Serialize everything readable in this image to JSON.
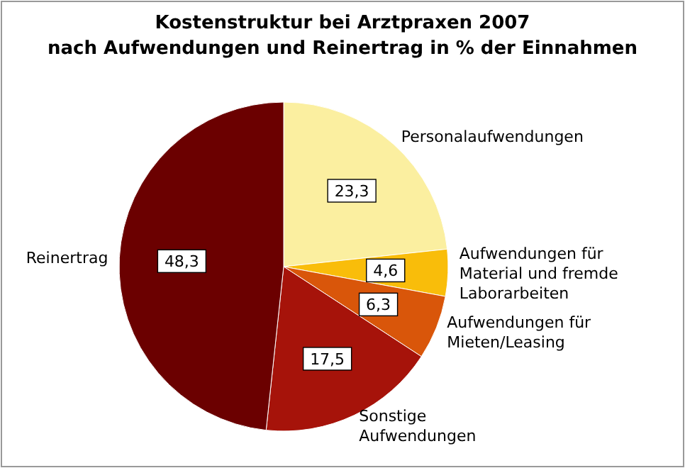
{
  "chart_data": {
    "type": "pie",
    "title": "Kostenstruktur bei Arztpraxen 2007",
    "subtitle": "nach Aufwendungen und Reinertrag in % der Einnahmen",
    "categories": [
      "Personalaufwendungen",
      "Aufwendungen für Material und fremde Laborarbeiten",
      "Aufwendungen für Mieten/Leasing",
      "Sonstige Aufwendungen",
      "Reinertrag"
    ],
    "values": [
      23.3,
      4.6,
      6.3,
      17.5,
      48.3
    ],
    "value_labels": [
      "23,3",
      "4,6",
      "6,3",
      "17,5",
      "48,3"
    ],
    "colors": [
      "#fbefa0",
      "#f9bd0a",
      "#d9560a",
      "#a6130a",
      "#6b0000"
    ]
  }
}
